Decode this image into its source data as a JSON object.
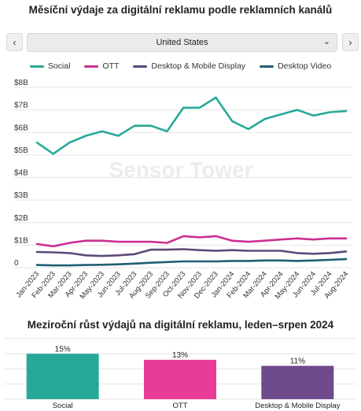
{
  "header": {
    "title": "Měsíční výdaje za digitální reklamu podle reklamních kanálů"
  },
  "selector": {
    "value": "United States"
  },
  "nav": {
    "prev_icon": "chevron-left-icon",
    "next_icon": "chevron-right-icon",
    "dropdown_icon": "chevron-down-icon"
  },
  "watermark": "Sensor Tower",
  "chart_data": [
    {
      "type": "line",
      "title": "Měsíční výdaje za digitální reklamu podle reklamních kanálů",
      "x": [
        "Jan-2023",
        "Feb-2023",
        "Mar-2023",
        "Apr-2023",
        "May-2023",
        "Jun-2023",
        "Jul-2023",
        "Aug-2023",
        "Sep-2023",
        "Oct-2023",
        "Nov-2023",
        "Dec-2023",
        "Jan-2024",
        "Feb-2024",
        "Mar-2024",
        "Apr-2024",
        "May-2024",
        "Jun-2024",
        "Jul-2024",
        "Aug-2024"
      ],
      "y_ticks": [
        "0",
        "$1B",
        "$2B",
        "$3B",
        "$4B",
        "$5B",
        "$6B",
        "$7B",
        "$8B"
      ],
      "ylim": [
        0,
        8
      ],
      "grid": true,
      "legend_position": "top",
      "series": [
        {
          "name": "Social",
          "color": "#27a99a",
          "values": [
            5.55,
            5.05,
            5.55,
            5.85,
            6.05,
            5.85,
            6.3,
            6.3,
            6.05,
            7.1,
            7.1,
            7.55,
            6.5,
            6.15,
            6.6,
            6.8,
            7.0,
            6.75,
            6.9,
            6.95
          ]
        },
        {
          "name": "OTT",
          "color": "#cc2f92",
          "values": [
            1.05,
            0.95,
            1.1,
            1.2,
            1.2,
            1.15,
            1.15,
            1.15,
            1.1,
            1.4,
            1.35,
            1.4,
            1.2,
            1.15,
            1.2,
            1.25,
            1.3,
            1.25,
            1.3,
            1.3
          ]
        },
        {
          "name": "Desktop & Mobile Display",
          "color": "#5c4a7a",
          "values": [
            0.7,
            0.68,
            0.65,
            0.55,
            0.52,
            0.55,
            0.6,
            0.8,
            0.8,
            0.82,
            0.78,
            0.75,
            0.78,
            0.75,
            0.75,
            0.75,
            0.65,
            0.62,
            0.65,
            0.72
          ]
        },
        {
          "name": "Desktop Video",
          "color": "#1f5f73",
          "values": [
            0.12,
            0.1,
            0.1,
            0.12,
            0.13,
            0.15,
            0.18,
            0.22,
            0.25,
            0.28,
            0.28,
            0.28,
            0.3,
            0.3,
            0.32,
            0.32,
            0.3,
            0.32,
            0.35,
            0.38
          ]
        }
      ]
    },
    {
      "type": "bar",
      "title": "Meziroční růst výdajů na digitální reklamu, leden–srpen 2024",
      "categories": [
        "Social",
        "OTT",
        "Desktop & Mobile Display"
      ],
      "values": [
        15,
        13,
        11
      ],
      "labels": [
        "15%",
        "13%",
        "11%"
      ],
      "colors": [
        "#27a99a",
        "#e83c98",
        "#6f4a8c"
      ],
      "ylim": [
        0,
        20
      ],
      "grid": true
    }
  ]
}
